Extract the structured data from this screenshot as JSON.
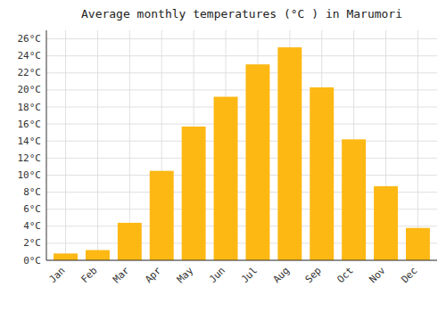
{
  "chart_data": {
    "type": "bar",
    "title": "Average monthly temperatures (°C ) in Marumori",
    "categories": [
      "Jan",
      "Feb",
      "Mar",
      "Apr",
      "May",
      "Jun",
      "Jul",
      "Aug",
      "Sep",
      "Oct",
      "Nov",
      "Dec"
    ],
    "values": [
      0.8,
      1.2,
      4.4,
      10.5,
      15.7,
      19.2,
      23.0,
      25.0,
      20.3,
      14.2,
      8.7,
      3.8
    ],
    "color": "#FDB813",
    "ylim": [
      0,
      27
    ],
    "yticks": [
      {
        "value": 0,
        "label": "0°C"
      },
      {
        "value": 2,
        "label": "2°C"
      },
      {
        "value": 4,
        "label": "4°C"
      },
      {
        "value": 6,
        "label": "6°C"
      },
      {
        "value": 8,
        "label": "8°C"
      },
      {
        "value": 10,
        "label": "10°C"
      },
      {
        "value": 12,
        "label": "12°C"
      },
      {
        "value": 14,
        "label": "14°C"
      },
      {
        "value": 16,
        "label": "16°C"
      },
      {
        "value": 18,
        "label": "18°C"
      },
      {
        "value": 20,
        "label": "20°C"
      },
      {
        "value": 22,
        "label": "22°C"
      },
      {
        "value": 24,
        "label": "24°C"
      },
      {
        "value": 26,
        "label": "26°C"
      }
    ],
    "grid": true
  }
}
